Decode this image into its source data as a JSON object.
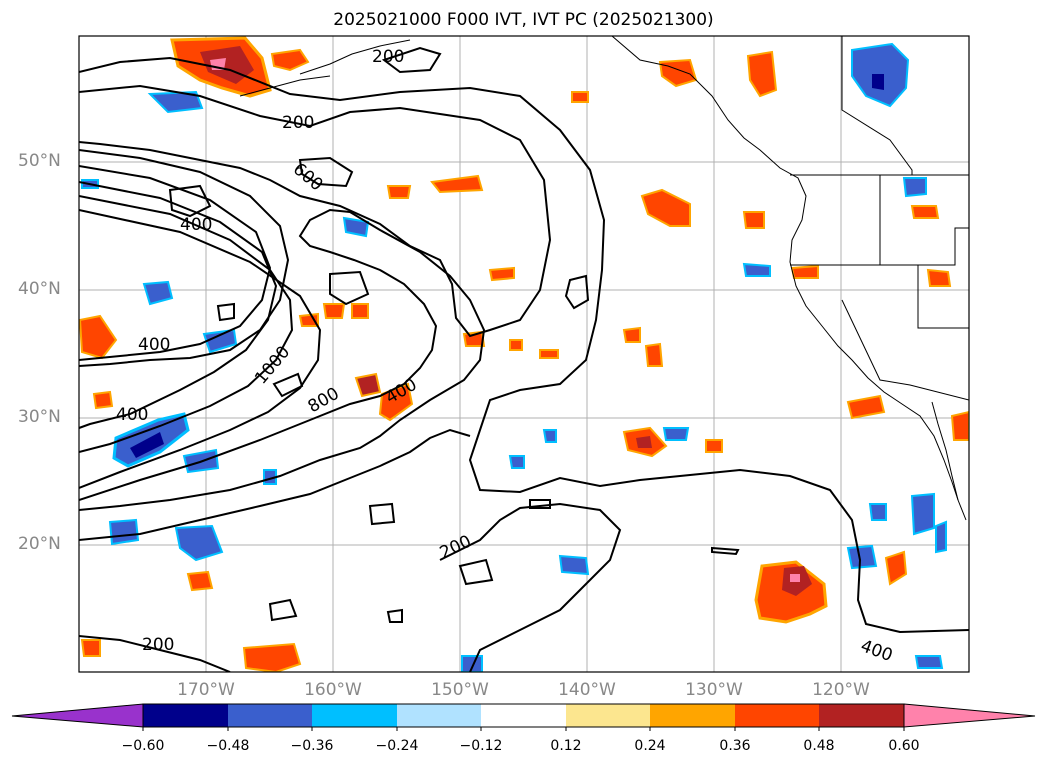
{
  "title": "2025021000 F000 IVT, IVT PC (2025021300)",
  "lat_labels": [
    "50°N",
    "40°N",
    "30°N",
    "20°N"
  ],
  "lon_labels": [
    "170°W",
    "160°W",
    "150°W",
    "140°W",
    "130°W",
    "120°W"
  ],
  "contour_labels": [
    "200",
    "200",
    "600",
    "400",
    "400",
    "1000",
    "400",
    "800",
    "400",
    "200",
    "200",
    "400"
  ],
  "colorbar": {
    "ticks": [
      "−0.60",
      "−0.48",
      "−0.36",
      "−0.24",
      "−0.12",
      "0.12",
      "0.24",
      "0.36",
      "0.48",
      "0.60"
    ],
    "colors": [
      "#9932cc",
      "#00008b",
      "#3a5fcd",
      "#00bfff",
      "#b0e2ff",
      "#ffffff",
      "#fce68f",
      "#ffa500",
      "#ff4500",
      "#b22222",
      "#ff82ab"
    ]
  },
  "legend_colors": {
    "strong_negative": "#00008b",
    "negative": "#3a5fcd",
    "weak_negative": "#00bfff",
    "weak_positive": "#fce68f",
    "positive": "#ff4500",
    "strong_positive": "#b22222",
    "extreme_positive": "#ff82ab"
  }
}
